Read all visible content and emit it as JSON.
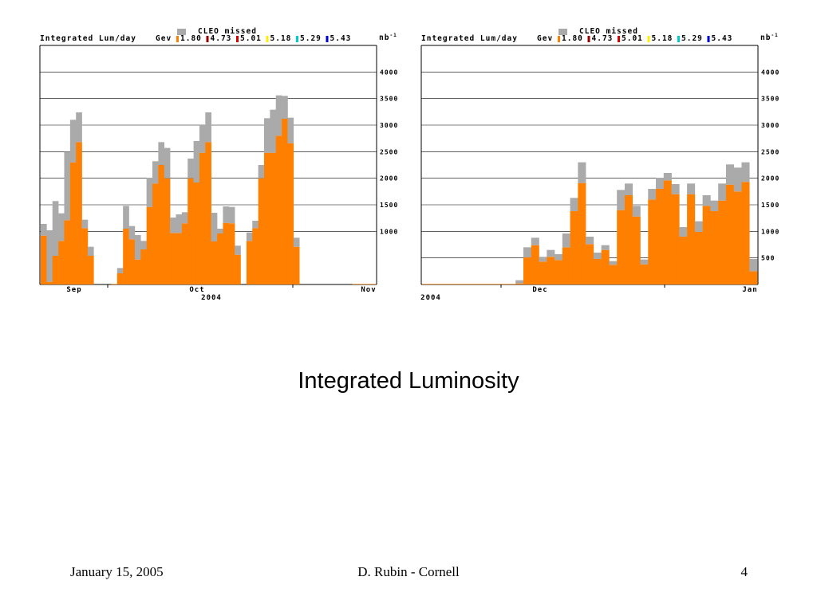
{
  "slide": {
    "title": "Integrated Luminosity",
    "footer_date": "January 15, 2005",
    "footer_author": "D. Rubin - Cornell",
    "page_number": "4"
  },
  "colors": {
    "missed": "#aaaaaa",
    "e180": "#ff8000",
    "e473": "#990000",
    "e501": "#dd0000",
    "e518": "#ffee00",
    "e529": "#00cccc",
    "e543": "#0000cc",
    "grid": "#000000",
    "frame": "#000000"
  },
  "chart_data": [
    {
      "type": "bar",
      "stacked": true,
      "title": "Integrated Lum/day",
      "legend_label": "Gev",
      "missed_label": "CLEO missed",
      "unit": "nb-1",
      "energies": [
        "1.80",
        "4.73",
        "5.01",
        "5.18",
        "5.29",
        "5.43"
      ],
      "ylim": [
        0,
        4500
      ],
      "yticks": [
        1000,
        1500,
        2000,
        2500,
        3000,
        3500,
        4000
      ],
      "grid": true,
      "month_labels": [
        "Sep",
        "Oct",
        "Nov"
      ],
      "year_label": "2004",
      "series": [
        {
          "name": "1.80",
          "values": [
            920,
            50,
            540,
            820,
            1210,
            2300,
            2680,
            1060,
            540,
            0,
            0,
            0,
            10,
            210,
            1050,
            850,
            470,
            660,
            1460,
            1900,
            2250,
            2000,
            970,
            970,
            1150,
            2000,
            1920,
            2480,
            2680,
            810,
            960,
            1160,
            1150,
            560,
            0,
            820,
            1060,
            2000,
            2480,
            2480,
            2800,
            3120,
            2660,
            710,
            0,
            0,
            0,
            0,
            0,
            0,
            0,
            0,
            0,
            10,
            10,
            10,
            10
          ]
        },
        {
          "name": "CLEO missed",
          "values": [
            220,
            970,
            1030,
            520,
            1290,
            800,
            560,
            160,
            170,
            0,
            0,
            0,
            0,
            100,
            430,
            250,
            460,
            160,
            550,
            420,
            430,
            570,
            290,
            350,
            210,
            370,
            780,
            520,
            560,
            540,
            90,
            310,
            310,
            170,
            0,
            160,
            140,
            250,
            650,
            810,
            760,
            430,
            480,
            170,
            0,
            0,
            0,
            0,
            0,
            0,
            0,
            0,
            0,
            0,
            0,
            0,
            0
          ]
        }
      ]
    },
    {
      "type": "bar",
      "stacked": true,
      "title": "Integrated Lum/day",
      "legend_label": "Gev",
      "missed_label": "CLEO missed",
      "unit": "nb-1",
      "energies": [
        "1.80",
        "4.73",
        "5.01",
        "5.18",
        "5.29",
        "5.43"
      ],
      "ylim": [
        0,
        4500
      ],
      "yticks": [
        500,
        1000,
        1500,
        2000,
        2500,
        3000,
        3500,
        4000
      ],
      "grid": true,
      "month_labels": [
        "Dec",
        "Jan"
      ],
      "year_label": "2004",
      "series": [
        {
          "name": "1.80",
          "values": [
            10,
            10,
            10,
            10,
            10,
            10,
            10,
            10,
            10,
            10,
            10,
            10,
            20,
            510,
            740,
            430,
            520,
            460,
            700,
            1380,
            1910,
            760,
            480,
            650,
            370,
            1400,
            1680,
            1280,
            380,
            1600,
            1800,
            1960,
            1700,
            900,
            1700,
            990,
            1480,
            1380,
            1580,
            1880,
            1750,
            1930,
            250
          ]
        },
        {
          "name": "CLEO missed",
          "values": [
            0,
            0,
            0,
            0,
            0,
            0,
            0,
            0,
            0,
            0,
            0,
            0,
            60,
            190,
            140,
            90,
            130,
            110,
            260,
            250,
            390,
            140,
            120,
            90,
            70,
            380,
            220,
            200,
            90,
            200,
            210,
            140,
            190,
            180,
            200,
            200,
            200,
            200,
            320,
            380,
            450,
            370,
            230
          ]
        }
      ]
    }
  ]
}
